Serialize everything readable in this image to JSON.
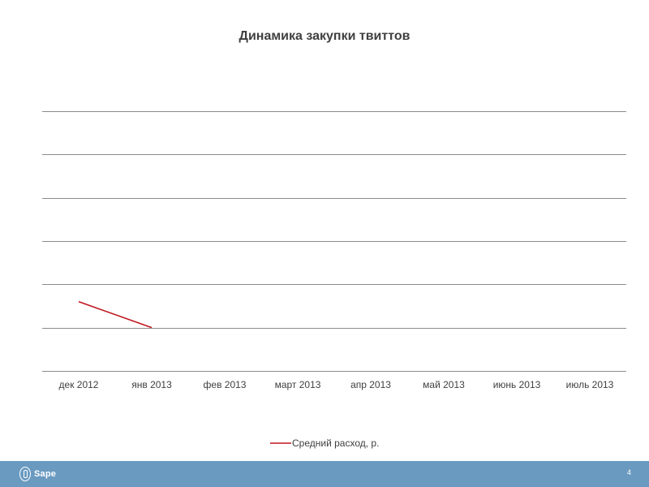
{
  "chart_data": {
    "type": "line",
    "title": "Динамика закупки твиттов",
    "categories": [
      "дек 2012",
      "янв 2013",
      "фев 2013",
      "март 2013",
      "апр 2013",
      "май 2013",
      "июнь 2013",
      "июль 2013"
    ],
    "series": [
      {
        "name": "Средний расход, р.",
        "values": [
          1.6,
          1.0,
          null,
          null,
          null,
          null,
          null,
          null
        ],
        "color": "#c0171f"
      }
    ],
    "ylim": [
      0,
      6
    ],
    "y_gridlines": [
      1,
      2,
      3,
      4,
      5,
      6
    ],
    "grid": true,
    "legend": "bottom",
    "xlabel": "",
    "ylabel": ""
  },
  "footer": {
    "logo_text": "Sape",
    "page_number": "4",
    "background": "#6a9ac0"
  },
  "colors": {
    "gridline": "#8c8c8c",
    "axis_text": "#404040"
  }
}
